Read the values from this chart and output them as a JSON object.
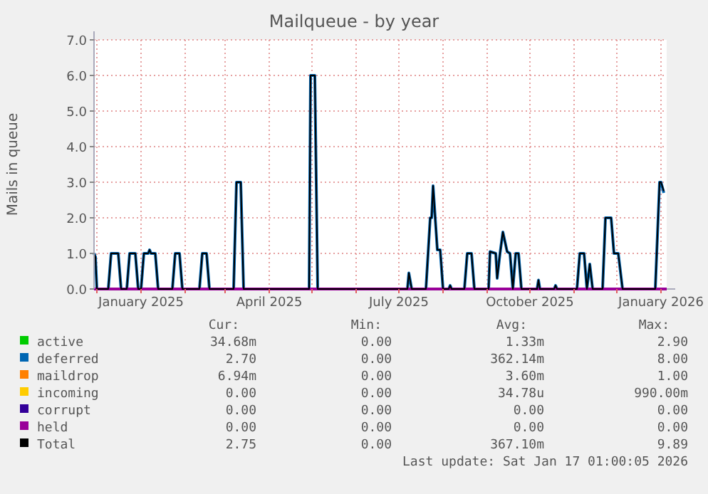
{
  "chart_data": {
    "type": "line",
    "title": "Mailqueue - by year",
    "ylabel": "Mails in queue",
    "xlim": [
      "2024-11-29",
      "2026-01-05"
    ],
    "xticks": [
      {
        "value": "2024-12-01",
        "label": null
      },
      {
        "value": "2025-01-01",
        "label": "January 2025"
      },
      {
        "value": "2025-02-01",
        "label": null
      },
      {
        "value": "2025-03-01",
        "label": null
      },
      {
        "value": "2025-04-01",
        "label": "April 2025"
      },
      {
        "value": "2025-05-01",
        "label": null
      },
      {
        "value": "2025-06-01",
        "label": null
      },
      {
        "value": "2025-07-01",
        "label": "July 2025"
      },
      {
        "value": "2025-08-01",
        "label": null
      },
      {
        "value": "2025-09-01",
        "label": null
      },
      {
        "value": "2025-10-01",
        "label": "October 2025"
      },
      {
        "value": "2025-11-01",
        "label": null
      },
      {
        "value": "2025-12-01",
        "label": null
      },
      {
        "value": "2026-01-01",
        "label": "January 2026"
      }
    ],
    "ylim": [
      0,
      7
    ],
    "yticks": [
      {
        "value": 0,
        "label": "0.0"
      },
      {
        "value": 1,
        "label": "1.0"
      },
      {
        "value": 2,
        "label": "2.0"
      },
      {
        "value": 3,
        "label": "3.0"
      },
      {
        "value": 4,
        "label": "4.0"
      },
      {
        "value": 5,
        "label": "5.0"
      },
      {
        "value": 6,
        "label": "6.0"
      },
      {
        "value": 7,
        "label": "7.0"
      }
    ],
    "grid": true,
    "legend": "bottom",
    "line_style": "solid",
    "marker": "none",
    "x": [
      "2024-11-29",
      "2024-11-30",
      "2024-12-01",
      "2024-12-09",
      "2024-12-11",
      "2024-12-16",
      "2024-12-18",
      "2024-12-22",
      "2024-12-24",
      "2024-12-28",
      "2024-12-30",
      "2025-01-01",
      "2025-01-03",
      "2025-01-06",
      "2025-01-07",
      "2025-01-08",
      "2025-01-11",
      "2025-01-13",
      "2025-01-23",
      "2025-01-25",
      "2025-01-28",
      "2025-01-30",
      "2025-02-11",
      "2025-02-13",
      "2025-02-16",
      "2025-02-18",
      "2025-03-07",
      "2025-03-09",
      "2025-03-12",
      "2025-03-14",
      "2025-04-29",
      "2025-04-30",
      "2025-05-03",
      "2025-05-05",
      "2025-07-07",
      "2025-07-08",
      "2025-07-10",
      "2025-07-20",
      "2025-07-23",
      "2025-07-24",
      "2025-07-25",
      "2025-07-28",
      "2025-07-30",
      "2025-08-01",
      "2025-08-05",
      "2025-08-06",
      "2025-08-07",
      "2025-08-16",
      "2025-08-18",
      "2025-08-21",
      "2025-08-23",
      "2025-09-02",
      "2025-09-03",
      "2025-09-07",
      "2025-09-08",
      "2025-09-10",
      "2025-09-12",
      "2025-09-15",
      "2025-09-17",
      "2025-09-19",
      "2025-09-21",
      "2025-09-23",
      "2025-09-25",
      "2025-10-06",
      "2025-10-07",
      "2025-10-08",
      "2025-10-18",
      "2025-10-19",
      "2025-10-20",
      "2025-11-03",
      "2025-11-05",
      "2025-11-08",
      "2025-11-10",
      "2025-11-12",
      "2025-11-14",
      "2025-11-21",
      "2025-11-23",
      "2025-11-27",
      "2025-11-29",
      "2025-12-02",
      "2025-12-05",
      "2025-12-28",
      "2025-12-31",
      "2026-01-01",
      "2026-01-03"
    ],
    "series": [
      {
        "name": "active",
        "color": "#00cc00",
        "values": [
          null,
          null,
          null,
          null,
          null,
          null,
          null,
          null,
          null,
          null,
          null,
          null,
          null,
          null,
          null,
          null,
          null,
          null,
          null,
          null,
          null,
          null,
          null,
          null,
          null,
          null,
          null,
          null,
          null,
          null,
          null,
          null,
          null,
          null,
          null,
          null,
          null,
          null,
          null,
          null,
          null,
          null,
          null,
          null,
          null,
          null,
          null,
          null,
          null,
          null,
          null,
          null,
          null,
          null,
          null,
          null,
          null,
          null,
          null,
          null,
          null,
          null,
          null,
          null,
          null,
          null,
          null,
          null,
          null,
          null,
          null,
          null,
          null,
          null,
          null,
          null,
          null,
          null,
          null,
          null,
          null,
          null,
          null,
          null,
          null
        ]
      },
      {
        "name": "deferred",
        "color": "#0066b3",
        "values": [
          1.0,
          0.9,
          0,
          0,
          1.0,
          1.0,
          0,
          0,
          1.0,
          1.0,
          0,
          0,
          1.0,
          1.0,
          1.1,
          1.0,
          1.0,
          0,
          0,
          1.0,
          1.0,
          0,
          0,
          1.0,
          1.0,
          0,
          0,
          3.0,
          3.0,
          0,
          0,
          6.0,
          6.0,
          0,
          0,
          0.45,
          0,
          0,
          2.0,
          2.0,
          2.9,
          1.1,
          1.1,
          0,
          0,
          0.1,
          0,
          0,
          1.0,
          1.0,
          0,
          0,
          1.05,
          1.0,
          0.3,
          1.0,
          1.6,
          1.05,
          1.0,
          0,
          1.0,
          1.0,
          0,
          0,
          0.25,
          0,
          0,
          0.1,
          0,
          0,
          1.0,
          1.0,
          0,
          0.7,
          0,
          0,
          2.0,
          2.0,
          1.0,
          1.0,
          0,
          0,
          3.0,
          3.0,
          2.7
        ]
      },
      {
        "name": "maildrop",
        "color": "#ff8000",
        "values": [
          null,
          null,
          null,
          null,
          null,
          null,
          null,
          null,
          null,
          null,
          null,
          null,
          null,
          null,
          null,
          null,
          null,
          null,
          null,
          null,
          null,
          null,
          null,
          null,
          null,
          null,
          null,
          null,
          null,
          null,
          null,
          null,
          null,
          null,
          null,
          null,
          null,
          null,
          null,
          null,
          null,
          null,
          null,
          null,
          null,
          null,
          null,
          null,
          null,
          null,
          null,
          null,
          null,
          null,
          null,
          null,
          null,
          null,
          null,
          null,
          null,
          null,
          null,
          null,
          null,
          null,
          null,
          null,
          null,
          null,
          null,
          null,
          null,
          null,
          null,
          null,
          null,
          null,
          null,
          null,
          null,
          null,
          null,
          null,
          null
        ]
      },
      {
        "name": "incoming",
        "color": "#ffcc00",
        "values": [
          null,
          null,
          null,
          null,
          null,
          null,
          null,
          null,
          null,
          null,
          null,
          null,
          null,
          null,
          null,
          null,
          null,
          null,
          null,
          null,
          null,
          null,
          null,
          null,
          null,
          null,
          null,
          null,
          null,
          null,
          null,
          null,
          null,
          null,
          null,
          null,
          null,
          null,
          null,
          null,
          null,
          null,
          null,
          null,
          null,
          null,
          null,
          null,
          null,
          null,
          null,
          null,
          null,
          null,
          null,
          null,
          null,
          null,
          null,
          null,
          null,
          null,
          null,
          null,
          null,
          null,
          null,
          null,
          null,
          null,
          null,
          null,
          null,
          null,
          null,
          null,
          null,
          null,
          null,
          null,
          null,
          null,
          null,
          null,
          null
        ]
      },
      {
        "name": "corrupt",
        "color": "#330099",
        "values": [
          null,
          null,
          null,
          null,
          null,
          null,
          null,
          null,
          null,
          null,
          null,
          null,
          null,
          null,
          null,
          null,
          null,
          null,
          null,
          null,
          null,
          null,
          null,
          null,
          null,
          null,
          null,
          null,
          null,
          null,
          null,
          null,
          null,
          null,
          null,
          null,
          null,
          null,
          null,
          null,
          null,
          null,
          null,
          null,
          null,
          null,
          null,
          null,
          null,
          null,
          null,
          null,
          null,
          null,
          null,
          null,
          null,
          null,
          null,
          null,
          null,
          null,
          null,
          null,
          null,
          null,
          null,
          null,
          null,
          null,
          null,
          null,
          null,
          null,
          null,
          null,
          null,
          null,
          null,
          null,
          null,
          null,
          null,
          null,
          null
        ]
      },
      {
        "name": "held",
        "color": "#990099",
        "x": [
          "2024-11-29",
          "2026-01-05"
        ],
        "values": [
          0,
          0
        ]
      },
      {
        "name": "Total",
        "color": "#000000",
        "values": [
          1.0,
          0.9,
          0,
          0,
          1.0,
          1.0,
          0,
          0,
          1.0,
          1.0,
          0,
          0,
          1.0,
          1.0,
          1.1,
          1.0,
          1.0,
          0,
          0,
          1.0,
          1.0,
          0,
          0,
          1.0,
          1.0,
          0,
          0,
          3.0,
          3.0,
          0,
          0,
          6.0,
          6.0,
          0,
          0,
          0.45,
          0,
          0,
          2.0,
          2.0,
          2.9,
          1.1,
          1.1,
          0,
          0,
          0.1,
          0,
          0,
          1.0,
          1.0,
          0,
          0,
          1.05,
          1.0,
          0.3,
          1.0,
          1.6,
          1.05,
          1.0,
          0,
          1.0,
          1.0,
          0,
          0,
          0.25,
          0,
          0,
          0.1,
          0,
          0,
          1.0,
          1.0,
          0,
          0.7,
          0,
          0,
          2.0,
          2.0,
          1.0,
          1.0,
          0,
          0,
          3.0,
          3.0,
          2.75
        ]
      }
    ],
    "annotations": [
      "Cur:",
      "Min:",
      "Avg:",
      "Max:",
      "34.68m",
      "0.00",
      "1.33m",
      "2.90",
      "2.70",
      "0.00",
      "362.14m",
      "8.00",
      "6.94m",
      "0.00",
      "3.60m",
      "1.00",
      "0.00",
      "0.00",
      "34.78u",
      "990.00m",
      "0.00",
      "0.00",
      "0.00",
      "0.00",
      "0.00",
      "0.00",
      "0.00",
      "0.00",
      "2.75",
      "0.00",
      "367.10m",
      "9.89",
      "Last update: Sat Jan 17 01:00:05 2026"
    ]
  }
}
